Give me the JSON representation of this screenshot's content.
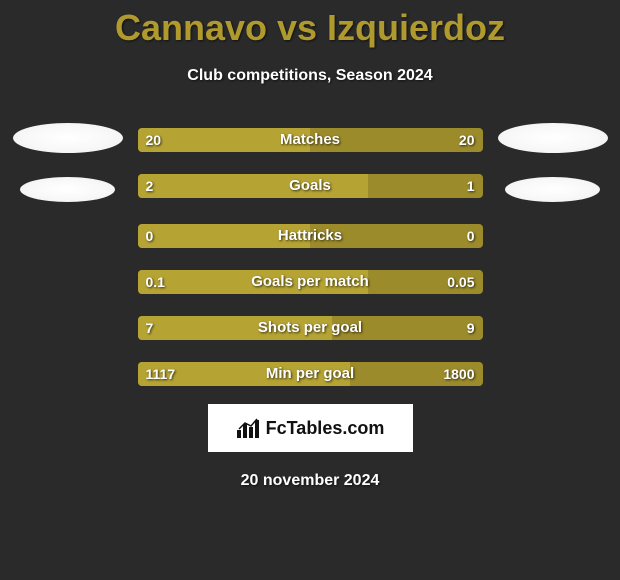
{
  "title": "Cannavo vs Izquierdoz",
  "subtitle": "Club competitions, Season 2024",
  "date": "20 november 2024",
  "logo_text": "FcTables.com",
  "colors": {
    "background": "#2a2a2a",
    "title_color": "#b09a2e",
    "bar_bg": "#9c8b2a",
    "bar_fill": "#b5a333",
    "avatar_bg": "#ffffff"
  },
  "stats": [
    {
      "label": "Matches",
      "left_val": "20",
      "right_val": "20",
      "left_pct": 50.0
    },
    {
      "label": "Goals",
      "left_val": "2",
      "right_val": "1",
      "left_pct": 66.7
    },
    {
      "label": "Hattricks",
      "left_val": "0",
      "right_val": "0",
      "left_pct": 50.0
    },
    {
      "label": "Goals per match",
      "left_val": "0.1",
      "right_val": "0.05",
      "left_pct": 66.7
    },
    {
      "label": "Shots per goal",
      "left_val": "7",
      "right_val": "9",
      "left_pct": 56.3
    },
    {
      "label": "Min per goal",
      "left_val": "1117",
      "right_val": "1800",
      "left_pct": 61.7
    }
  ]
}
